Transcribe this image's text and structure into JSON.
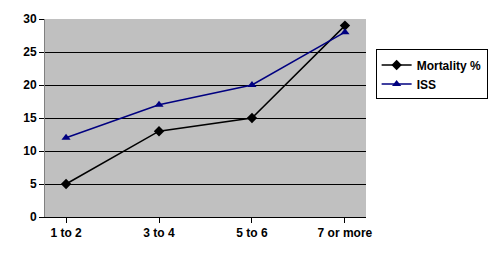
{
  "chart_data": {
    "type": "line",
    "categories": [
      "1 to 2",
      "3 to 4",
      "5 to 6",
      "7 or more"
    ],
    "series": [
      {
        "name": "Mortality %",
        "color": "#000000",
        "marker": "diamond",
        "values": [
          5,
          13,
          15,
          29
        ]
      },
      {
        "name": "ISS",
        "color": "#000080",
        "marker": "triangle-up",
        "values": [
          12,
          17,
          20,
          28
        ]
      }
    ],
    "ylim": [
      0,
      30
    ],
    "yticks": [
      0,
      5,
      10,
      15,
      20,
      25,
      30
    ],
    "grid": true,
    "legend": "right"
  }
}
